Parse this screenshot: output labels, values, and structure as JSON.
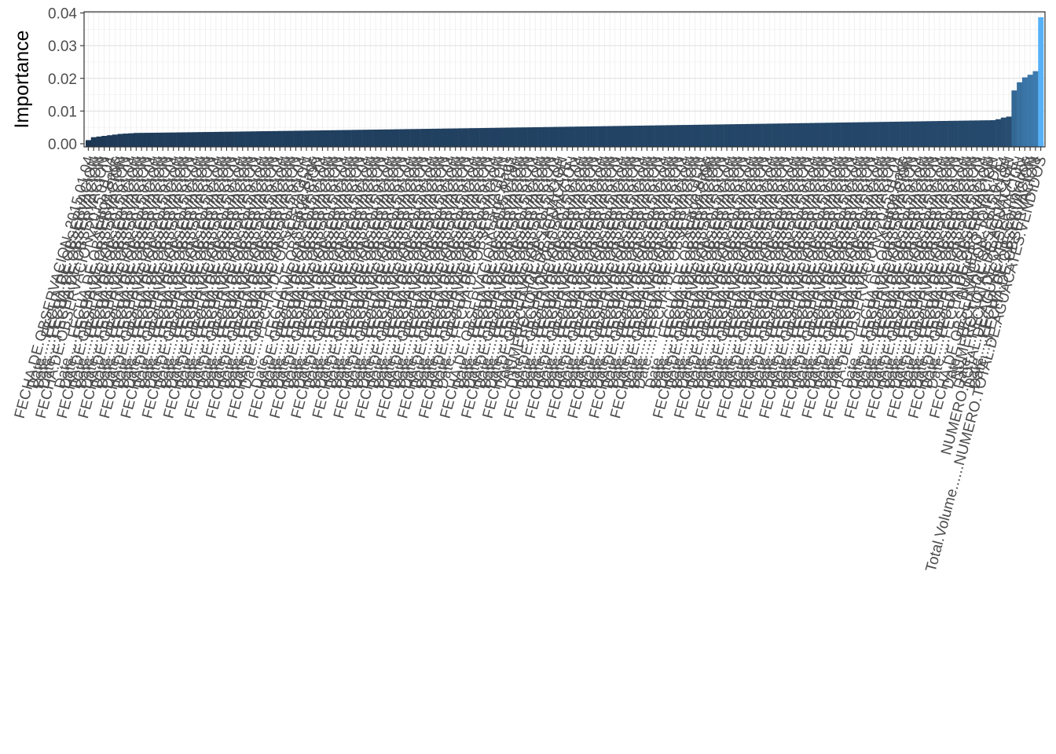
{
  "chart_data": {
    "type": "bar",
    "ylabel": "Importance",
    "xlabel": "",
    "ylim": [
      0,
      0.04
    ],
    "yticks": [
      0.0,
      0.01,
      0.02,
      0.03,
      0.04
    ],
    "ytick_labels": [
      "0.00",
      "0.01",
      "0.02",
      "0.03",
      "0.04"
    ],
    "grid": true,
    "legend": "none",
    "fill_low": "#1c3551",
    "fill_high": "#56b1f7",
    "sorted": "ascending",
    "n_bars": 180,
    "values_low": [
      0.0011,
      0.002,
      0.0022,
      0.0024,
      0.0026,
      0.0028,
      0.003,
      0.0031,
      0.0032,
      0.0033
    ],
    "values_high": [
      0.0072,
      0.0075,
      0.008,
      0.0083,
      0.0163,
      0.0188,
      0.0203,
      0.0211,
      0.0222,
      0.0387
    ],
    "visible_labels": [
      "NUMERO.TOTAL.DE.AGUACATE.",
      "NUMERO.TOTAL.DE.",
      "NUMERO.TOTAL.DE.AGUACATE.Comprados",
      "Total.Volume......NUMERO.TOTAL.DE.AGUACATES.VENDIDOS",
      "FECHA.DE.OBSERVACION..2015.01.04",
      "XLarge.Bags",
      "Date.....FECHA.DE.OBSERVACION"
    ]
  }
}
